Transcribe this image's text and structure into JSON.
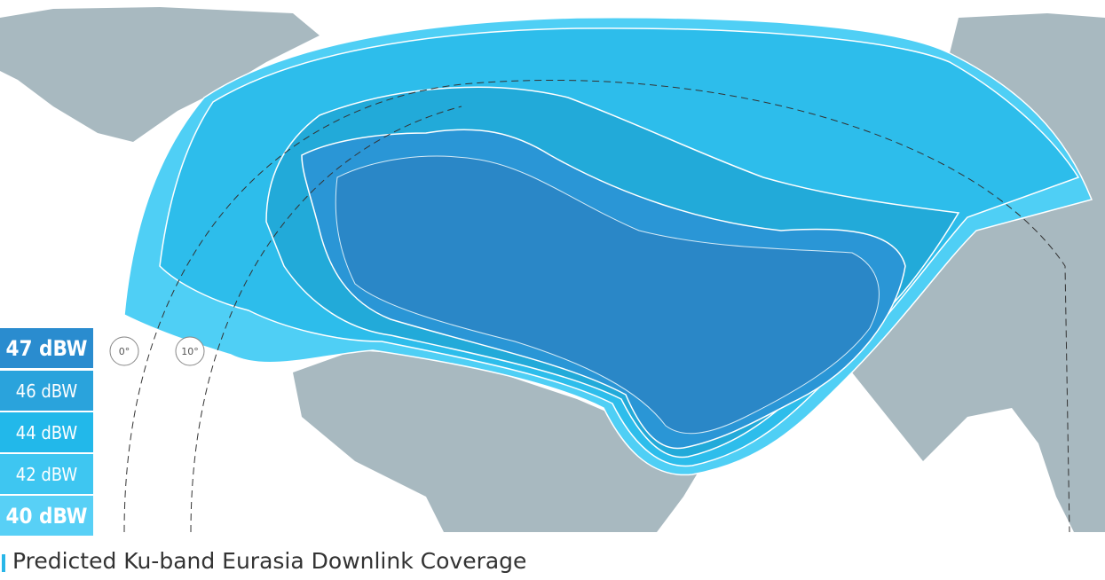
{
  "legend": [
    "47 dBW",
    "46 dBW",
    "44 dBW",
    "42 dBW",
    "40 dBW"
  ],
  "longitude_markers": [
    "0°",
    "10°"
  ],
  "caption": "Predicted Ku-band Eurasia Downlink Coverage"
}
